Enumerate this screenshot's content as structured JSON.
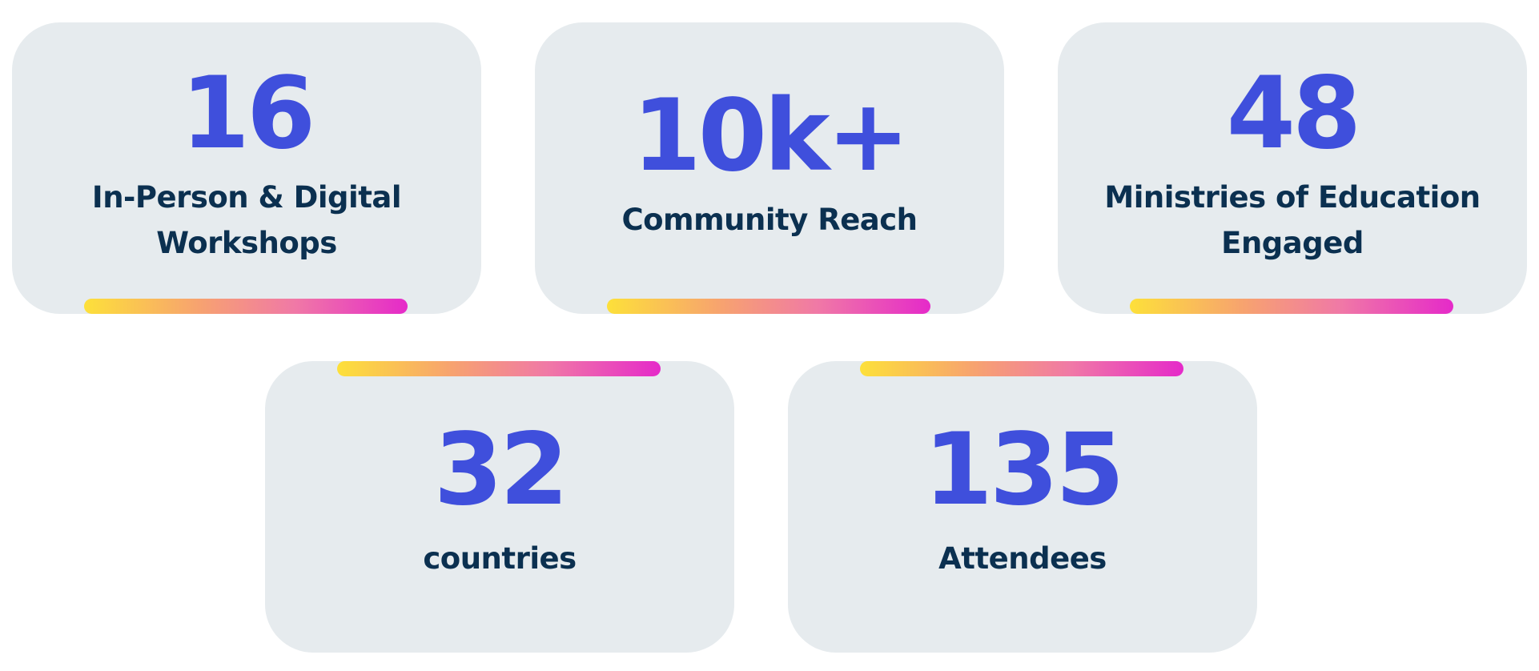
{
  "stats": [
    {
      "value": "16",
      "label_line1": "In-Person & Digital",
      "label_line2": "Workshops"
    },
    {
      "value": "10k+",
      "label_line1": "Community Reach"
    },
    {
      "value": "48",
      "label_line1": "Ministries of Education",
      "label_line2": "Engaged"
    },
    {
      "value": "32",
      "label_line1": "countries"
    },
    {
      "value": "135",
      "label_line1": "Attendees"
    }
  ],
  "colors": {
    "card_background": "#e6ebee",
    "number": "#3f4fdc",
    "label": "#0b3050",
    "accent_gradient": [
      "#fde03a",
      "#f7a36f",
      "#f079a6",
      "#e52ac9"
    ]
  }
}
